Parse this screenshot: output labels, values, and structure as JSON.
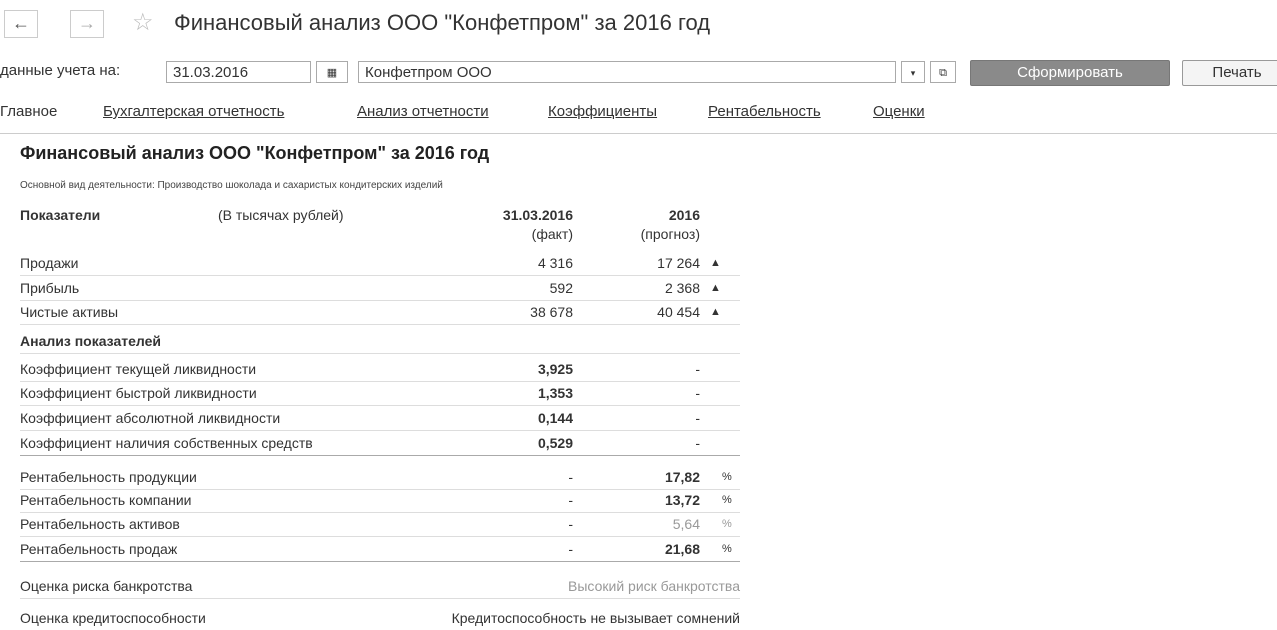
{
  "toolbar": {
    "title": "Финансовый анализ ООО \"Конфетпром\" за 2016 год",
    "date_label": "данные учета на:",
    "date": "31.03.2016",
    "organization": "Конфетпром ООО",
    "generate_button": "Сформировать",
    "print_button": "Печать"
  },
  "tabs": [
    "Главное",
    "Бухгалтерская отчетность",
    "Анализ отчетности",
    "Коэффициенты",
    "Рентабельность",
    "Оценки"
  ],
  "report": {
    "title": "Финансовый анализ ООО \"Конфетпром\" за 2016 год",
    "subtitle": "Основной вид деятельности: Производство шоколада и сахаристых кондитерских изделий",
    "header": {
      "indicators": "Показатели",
      "units": "(В тысячах рублей)",
      "fact": "31.03.2016",
      "fact_note": "(факт)",
      "forecast": "2016",
      "forecast_note": "(прогноз)"
    },
    "rows": [
      {
        "label": "Продажи",
        "fact": "4 316",
        "forecast": "17 264"
      },
      {
        "label": "Прибыль",
        "fact": "592",
        "forecast": "2 368"
      },
      {
        "label": "Чистые активы",
        "fact": "38 678",
        "forecast": "40 454"
      }
    ],
    "section": "Анализ показателей",
    "ratios": [
      {
        "label": "Коэффициент текущей ликвидности",
        "fact": "3,925",
        "forecast": "-"
      },
      {
        "label": "Коэффициент быстрой ликвидности",
        "fact": "1,353",
        "forecast": "-"
      },
      {
        "label": "Коэффициент абсолютной ликвидности",
        "fact": "0,144",
        "forecast": "-"
      },
      {
        "label": "Коэффициент наличия собственных средств",
        "fact": "0,529",
        "forecast": "-"
      }
    ],
    "profitability": [
      {
        "label": "Рентабельность продукции",
        "fact": "-",
        "forecast": "17,82",
        "unit": "%"
      },
      {
        "label": "Рентабельность компании",
        "fact": "-",
        "forecast": "13,72",
        "unit": "%"
      },
      {
        "label": "Рентабельность активов",
        "fact": "-",
        "forecast": "5,64",
        "unit": "%"
      },
      {
        "label": "Рентабельность продаж",
        "fact": "-",
        "forecast": "21,68",
        "unit": "%"
      }
    ],
    "assessments": [
      {
        "label": "Оценка риска банкротства",
        "value": "Высокий риск банкротства"
      },
      {
        "label": "Оценка кредитоспособности",
        "value": "Кредитоспособность не вызывает сомнений"
      }
    ]
  }
}
